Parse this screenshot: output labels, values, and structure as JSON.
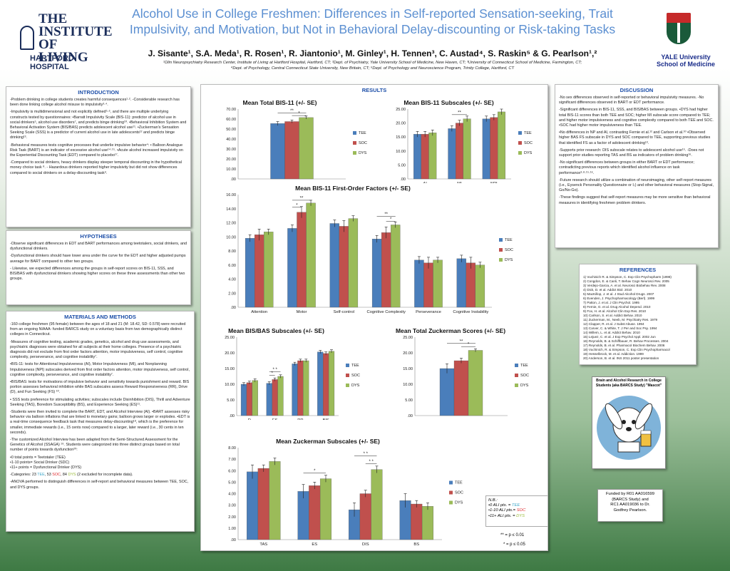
{
  "header": {
    "title_line1": "Alcohol Use in College Freshmen: Differences in Self-reported Sensation-seeking, Trait",
    "title_line2": "Impulsivity, and Motivation, but Not in Behavioral Delay-discounting or Risk-taking Tasks",
    "authors": "J. Sisante¹, S.A. Meda¹, R. Rosen¹, R. Jiantonio¹, M. Ginley¹, H. Tennen³, C. Austad⁴, S. Raskin⁵ & G. Pearlson¹,²",
    "affil_line1": "¹Olin Neuropsychiatry Research Center, Institute of Living at Hartford Hospital, Hartford, CT; ²Dept. of Psychiatry, Yale University School of Medicine, New Haven, CT; ³University of Connecticut School of Medicine, Farmington, CT;",
    "affil_line2": "⁴Dept. of Psychology, Central Connecticut State University, New Britain, CT; ⁵Dept. of Psychology and Neuroscience Program, Trinity College, Hartford, CT",
    "logo_left_line1": "THE",
    "logo_left_line2": "INSTITUTE",
    "logo_left_line3": "OF LIVING",
    "logo_left_sub": "HARTFORD HOSPITAL",
    "logo_right_line1": "YALE University",
    "logo_right_line2": "School of Medicine"
  },
  "sections": {
    "intro_title": "INTRODUCTION",
    "intro_p1": "-Problem drinking in college students creates harmful consequences¹·². -Considerable research has been done linking college alcohol misuse to impulsivity³·⁴.",
    "intro_p2": "-Impulsivity is multidimensional and not explicitly defined⁵·⁶, and there are multiple underlying constructs tested by questionnaires: •Barratt Impulsivity Scale (BIS-11): predictor of alcohol use in social drinkers⁵, alcohol use disorders⁷, and predicts binge drinking¹⁰. •Behavioral Inhibition System and Behavioral Activation System (BIS/BAS) predicts adolescent alcohol use¹¹. •Zuckerman's Sensation Seeking Scale (SSS) is a predictor of current alcohol use in late adolescents¹² and predicts binge drinking¹³.",
    "intro_p3": "-Behavioral measures tests cognitive processes that underlie impulsive behavior⁴: • Balloon Analogue Risk Task (BART) is an indicator of excessive alcohol use¹⁴·¹⁵. •Acute alcohol increased impulsivity on the Experiential Discounting Task (EDT) compared to placebo¹⁷.",
    "intro_p4": "-Compared to social drinkers, heavy drinkers display steeper temporal discounting in the hypothetical money choice task ⁸. - Hazardous drinkers reported higher impulsivity but did not show differences compared to social drinkers on a delay-discounting task⁹.",
    "hyp_title": "HYPOTHESES",
    "hyp_p1": "-Observe significant differences in EDT and BART performances among teetotalers, social drinkers, and dysfunctional drinkers.",
    "hyp_p2": "-Dysfunctional drinkers should have lower area under the curve for the EDT and higher adjusted pumps average for BART compared to other two groups.",
    "hyp_p3": "- Likewise, we expected differences among the groups in self-report scores on BIS-11, SSS, and BIS/BAS with dysfunctional drinkers showing higher scores on these three assessments than other two groups.",
    "mm_title": "MATERIALS AND METHODS",
    "mm_p1": "-160 college freshmen (95 female) between the ages of 18 and 21 (M: 18.42, SD: 0.578) were recruited from an ongoing NIAAA- funded BARCS study on a voluntary basis from two demographically distinct colleges in Connecticut.",
    "mm_p2": "-Measures of cognitive testing, academic grades, genetics, alcohol and drug use assessments, and psychiatric diagnoses were obtained for all subjects at their home colleges. Presence of a psychiatric diagnosis did not exclude from first order factors attention, motor impulsiveness, self control, cognitive complexity, perseverance, and cognitive instability⁷.",
    "mm_p3": "•BIS-11: tests for Attentional Impulsiveness (AI), Motor Impulsiveness (MI), and Nonplanning Impulsiveness (NPI) subscales derived from first order factors attention, motor impulsiveness, self control, cognitive complexity, perseverance, and cognitive instability⁷.",
    "mm_p4": "•BIS/BAS: tests for motivations of impulsive behavior and sensitivity towards punishment and reward. BIS portion assesses behavioral inhibition while BAS subscales assess Reward Responsiveness (RR), Drive (D), and Fun Seeking (FS) ¹⁰.",
    "mm_p5": "• SSS tests preference for stimulating activities; subscales include Disinhibition (DIS), Thrill and Adventure Seeking (TAS), Boredom Susceptibility (BS), and Experience Seeking (ES)¹¹.",
    "mm_p6": "-Students were then invited to complete the BART, EDT, and Alcohol Interview (AI). •BART assesses risky behavior via balloon inflations that are linked to monetary gains; balloon grows larger or explodes. •EDT is a real-time consequence feedback task that measures delay-discounting¹⁸, which is the preference for smaller, immediate rewards (i.e., 15 cents now) compared to a larger, later reward (i.e., 30 cents in ten seconds).",
    "mm_p7": "-The customized Alcohol Interview has been adapted from the Semi-Structured Assessment for the Genetics of Alcohol (SSAGA) ¹⁹. Students were categorized into three distinct groups based on total number of points towards dysfunction²⁰:",
    "mm_g1": "•0 total points = Teetotaler (TEE)",
    "mm_g2": "•1-10 points= Social Drinker (SDC)",
    "mm_g3": "•11+ points = Dysfunctional Drinker (DYS)",
    "mm_p8a": "-Categories: 23 ",
    "mm_p8_tee": "TEE",
    "mm_p8b": ", 53 ",
    "mm_p8_soc": "SOC",
    "mm_p8c": ", 84 ",
    "mm_p8_dys": "DYS",
    "mm_p8d": " (2 excluded for incomplete data).",
    "mm_p9": "-ANOVA performed to distinguish differences in self-report and behavioral measures between TEE, SOC, and DYS groups.",
    "results_title": "RESULTS",
    "disc_title": "DISCUSSION",
    "disc_p1": "-No sex differences observed in self-reported or behavioral impulsivity measures. -No significant differences observed in BART or EDT performance.",
    "disc_p2": "-Significant differences in BIS-11, SSS, and BIS/BAS between groups. •DYS had higher total BIS-11 scores than both TEE and SOC; higher MI subscale score compared to TEE; and higher motor impulsiveness and cognitive complexity compared to both TEE and SOC. •SOC had higher motor impulsiveness than TEE.",
    "disc_p3": "•No differences in NP and AI, contrasting Fernie et al.¹² and Carlson et al.¹⁰ •Observed higher BAS FS subscale in DYS and SOC compared to TEE, supporting previous studies that identified FS as a factor of adolescent drinking¹³.",
    "disc_p4": "-Supports prior research: DIS subscale relates to adolescent alcohol use¹⁵. -Does not support prior studies reporting TAS and BS as indicators of problem drinking¹⁶.",
    "disc_p5": "-No significant differences between groups in either BART or EDT performance; contradicting previous reports which identified alcohol influence on task performance³·⁸·¹⁵·¹⁶.",
    "disc_p6": "-Future research should utilize a combination of neuroimaging, other self-report measures (i.e., Eysenck Personality Questionnaire or I₇) and other behavioral measures (Stop-Signal, Go/No-Go).",
    "disc_p7": "-These findings suggest that self-report measures may be more sensitive than behavioral measures in identifying freshmen problem drinkers.",
    "refs_title": "REFERENCES",
    "refs": [
      "1) Vuchinich R. & Simpson, C. Exp Clin Psychopharm (1998)",
      "2) Congdon, E. & Canli, T. Behav Cogn Neurosci Rev. 2005",
      "3) Verdejo-Garcia, A. et al. Neurosci Biobehav Rev. 2008",
      "4) Dick, D. et al. Addict Biol. 2010",
      "5) MacKillop, J. et al. J Stud Alcohol Drugs. 2007",
      "6) Evenden, J. Psychopharmacology (Berl). 1999",
      "7) Patton, J. et al. J Clin Psychol. 1995",
      "8) Fernie, G. et al. Drug Alcohol Depend. 2010",
      "9) Fox, H. et al. Alcohol Clin Exp Res. 2010",
      "10) Carlson, S. et al. Addict Behav. 2010",
      "11) Zuckerman, M., Neeb, M. Psychiatry Res. 1979",
      "12) Clapper, R. et al. J Subst Abuse. 1994",
      "13) Carver, C. & White, T. J Per and Soc Psy. 1994",
      "14) Willem, L. et al. Addict Behav. 2010",
      "15) Lejuez, C. et al. J Exp Psychol Appl. 2002 Jun",
      "16) Reynolds, B. & Schiffbauer, R. Behav Processes. 2004",
      "17) Reynolds, B. et al. Pharmacol Biochem Behav. 2006",
      "18) Vuchinich, R. & Simpson, C. Exp Clin Psychopharmacol",
      "19) Hesselbrock, M. et al. Addiction. 1999",
      "20) Anderson, B. et al. INS 2011 poster presentation"
    ],
    "mascot_caption_l1": "Brain and Alcohol Research in College",
    "mascot_caption_l2": "Students (aka BARCS Study) \"Mascot\"",
    "funded_l1": "Funded by R01 AA016599",
    "funded_l2": "(BARCS Study) and",
    "funded_l3": "RC1 AA019036 to Dr.",
    "funded_l4": "Godfrey Pearlson.",
    "nb_title": "N.B.:",
    "nb_l1_a": "•0  ALI pts. = ",
    "nb_l1_b": "TEE",
    "nb_l2_a": "•1-10  ALI pts.= ",
    "nb_l2_b": "SOC",
    "nb_l3_a": "•11+  ALI pts. = ",
    "nb_l3_b": "DYS",
    "sig1": "** = p ≤ 0.01",
    "sig2": "* = p ≤ 0.05"
  },
  "colors": {
    "TEE": "#4a7ebb",
    "SOC": "#c0504d",
    "DYS": "#9bbb59"
  },
  "chart_data": [
    {
      "type": "bar",
      "title": "Mean Total BIS-11 (+/- SE)",
      "categories": [
        ""
      ],
      "series": [
        {
          "name": "TEE",
          "values": [
            55.5
          ]
        },
        {
          "name": "SOC",
          "values": [
            57.5
          ]
        },
        {
          "name": "DYS",
          "values": [
            61.5
          ]
        }
      ],
      "ylim": [
        0,
        70
      ],
      "yticks": [
        "70.00",
        "60.00",
        "50.00",
        "40.00",
        "30.00",
        "20.00",
        "10.00",
        ".00"
      ],
      "annotations": [
        "**",
        "*"
      ]
    },
    {
      "type": "bar",
      "title": "Mean BIS-11 Subscales (+/- SE)",
      "categories": [
        "AI",
        "MI",
        "NPI"
      ],
      "series": [
        {
          "name": "TEE",
          "values": [
            16,
            18,
            21.5
          ]
        },
        {
          "name": "SOC",
          "values": [
            16,
            20,
            22
          ]
        },
        {
          "name": "DYS",
          "values": [
            16.5,
            21.5,
            24
          ]
        }
      ],
      "ylim": [
        0,
        25
      ],
      "yticks": [
        "25.00",
        "20.00",
        "15.00",
        "10.00",
        "5.00",
        ".00"
      ],
      "annotations": [
        "**"
      ]
    },
    {
      "type": "bar",
      "title": "Mean BIS-11 First-Order Factors (+/- SE)",
      "categories": [
        "Attention",
        "Motor",
        "Self-control",
        "Cognitive Complexity",
        "Perseverance",
        "Cognitive Instability"
      ],
      "series": [
        {
          "name": "TEE",
          "values": [
            9.8,
            11.2,
            11.9,
            9.7,
            6.7,
            6.9
          ]
        },
        {
          "name": "SOC",
          "values": [
            10.3,
            13.5,
            11.5,
            10.6,
            6.3,
            6.3
          ]
        },
        {
          "name": "DYS",
          "values": [
            10.7,
            14.8,
            12.6,
            11.7,
            6.7,
            6.0
          ]
        }
      ],
      "ylim": [
        0,
        16
      ],
      "yticks": [
        "16.00",
        "14.00",
        "12.00",
        "10.00",
        "8.00",
        "6.00",
        "4.00",
        "2.00",
        ".00"
      ],
      "annotations": [
        "*",
        "**",
        "**",
        "*"
      ]
    },
    {
      "type": "bar",
      "title": "Mean BIS/BAS Subscales (+/- SE)",
      "categories": [
        "D",
        "FS",
        "RR",
        "BIS"
      ],
      "series": [
        {
          "name": "TEE",
          "values": [
            10,
            10.3,
            16.5,
            20.3
          ]
        },
        {
          "name": "SOC",
          "values": [
            10.5,
            11.5,
            17.5,
            19.8
          ]
        },
        {
          "name": "DYS",
          "values": [
            11.2,
            12.5,
            17.5,
            20.5
          ]
        }
      ],
      "ylim": [
        0,
        25
      ],
      "yticks": [
        "25.00",
        "20.00",
        "15.00",
        "10.00",
        "5.00",
        ".00"
      ],
      "annotations": [
        "* *",
        "*"
      ]
    },
    {
      "type": "bar",
      "title": "Mean Total Zuckerman Scores (+/- SE)",
      "categories": [
        ""
      ],
      "series": [
        {
          "name": "TEE",
          "values": [
            15
          ]
        },
        {
          "name": "SOC",
          "values": [
            17.5
          ]
        },
        {
          "name": "DYS",
          "values": [
            20.8
          ]
        }
      ],
      "ylim": [
        0,
        25
      ],
      "yticks": [
        "25.00",
        "20.00",
        "15.00",
        "10.00",
        "5.00",
        ".00"
      ],
      "annotations": [
        "**",
        "*"
      ]
    },
    {
      "type": "bar",
      "title": "Mean Zuckerman Subscales (+/- SE)",
      "categories": [
        "TAS",
        "ES",
        "DIS",
        "BS"
      ],
      "series": [
        {
          "name": "TEE",
          "values": [
            5.9,
            4.2,
            2.6,
            3.4
          ]
        },
        {
          "name": "SOC",
          "values": [
            6.2,
            4.7,
            4.0,
            3.1
          ]
        },
        {
          "name": "DYS",
          "values": [
            6.8,
            5.3,
            6.1,
            2.9
          ]
        }
      ],
      "ylim": [
        0,
        8
      ],
      "yticks": [
        "8.00",
        "7.00",
        "6.00",
        "5.00",
        "4.00",
        "3.00",
        "2.00",
        "1.00",
        ".00"
      ],
      "annotations": [
        "*",
        "* *",
        "* *"
      ]
    }
  ]
}
